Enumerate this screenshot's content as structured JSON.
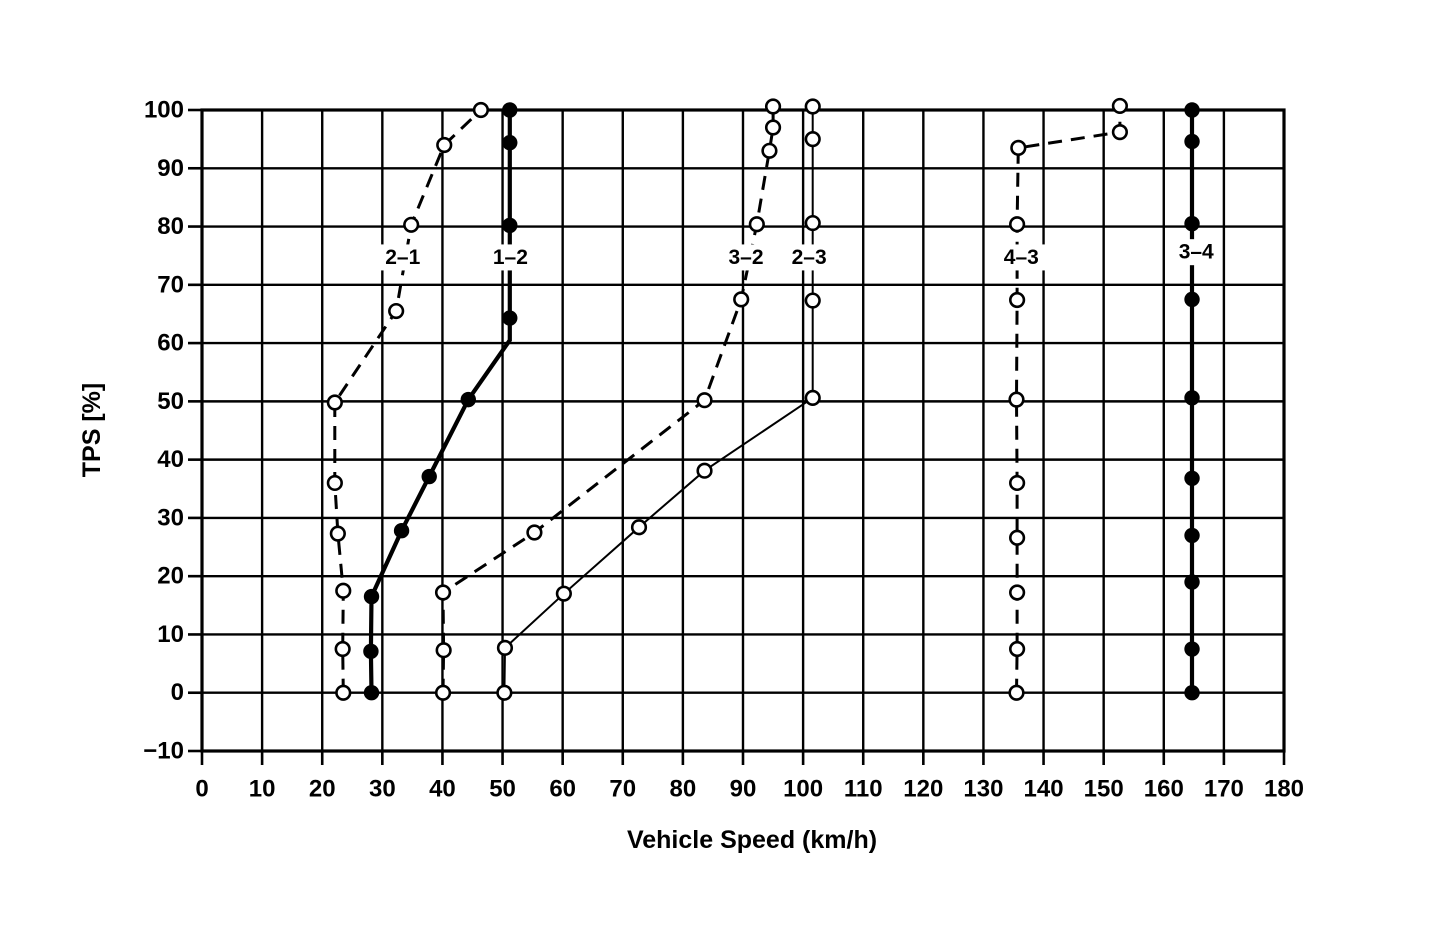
{
  "figure": {
    "background": "#ffffff",
    "ink": "#000000"
  },
  "chart_data": {
    "type": "line",
    "title": "",
    "xlabel": "Vehicle Speed (km/h)",
    "ylabel": "TPS [%]",
    "xlim": [
      0,
      180
    ],
    "ylim": [
      -10,
      100
    ],
    "x_ticks": [
      0,
      10,
      20,
      30,
      40,
      50,
      60,
      70,
      80,
      90,
      100,
      110,
      120,
      130,
      140,
      150,
      160,
      170,
      180
    ],
    "y_ticks": [
      -10,
      0,
      10,
      20,
      30,
      40,
      50,
      60,
      70,
      80,
      90,
      100
    ],
    "grid": true,
    "legend": "none",
    "series": [
      {
        "name": "2-1",
        "label": "2–1",
        "direction": "downshift",
        "line_style": "dashed",
        "marker": "open-circle",
        "label_xy": [
          33.4,
          74.7
        ],
        "points": [
          [
            23.5,
            0
          ],
          [
            23.4,
            7.5
          ],
          [
            23.5,
            17.5
          ],
          [
            22.6,
            27.3
          ],
          [
            22.1,
            36.0
          ],
          [
            22.1,
            49.8
          ],
          [
            32.3,
            65.5
          ],
          [
            34.8,
            80.3
          ],
          [
            40.3,
            94.0
          ],
          [
            46.4,
            100.0
          ]
        ]
      },
      {
        "name": "1-2",
        "label": "1–2",
        "direction": "upshift",
        "line_style": "solid-thick",
        "marker": "filled-circle",
        "label_xy": [
          51.3,
          74.7
        ],
        "points": [
          [
            28.2,
            0
          ],
          [
            28.1,
            7.1
          ],
          [
            28.2,
            16.5
          ],
          [
            33.2,
            27.8
          ],
          [
            37.8,
            37.1
          ],
          [
            44.3,
            50.3
          ],
          [
            51.2,
            64.3
          ],
          [
            51.2,
            80.2
          ],
          [
            51.2,
            94.4
          ],
          [
            51.2,
            100.0
          ]
        ],
        "line_vertices": [
          [
            28.2,
            0
          ],
          [
            28.1,
            7.1
          ],
          [
            28.2,
            16.5
          ],
          [
            33.2,
            27.8
          ],
          [
            37.8,
            37.1
          ],
          [
            44.3,
            50.3
          ],
          [
            51.2,
            60.5
          ],
          [
            51.2,
            64.3
          ],
          [
            51.2,
            80.2
          ],
          [
            51.2,
            94.4
          ],
          [
            51.2,
            100.0
          ]
        ]
      },
      {
        "name": "3-2",
        "label": "3–2",
        "direction": "downshift",
        "line_style": "dashed",
        "marker": "open-circle",
        "label_xy": [
          90.5,
          74.7
        ],
        "points": [
          [
            40.1,
            0
          ],
          [
            40.2,
            7.3
          ],
          [
            40.1,
            17.2
          ],
          [
            55.3,
            27.5
          ],
          [
            83.6,
            50.2
          ],
          [
            89.7,
            67.5
          ],
          [
            92.3,
            80.4
          ],
          [
            94.4,
            93.0
          ],
          [
            95.0,
            97.0
          ],
          [
            95.0,
            100.6
          ]
        ]
      },
      {
        "name": "2-3",
        "label": "2–3",
        "direction": "upshift",
        "line_style": "solid-thin",
        "marker": "open-circle",
        "label_xy": [
          101.0,
          74.7
        ],
        "points": [
          [
            50.3,
            0
          ],
          [
            50.4,
            7.7
          ],
          [
            60.2,
            17.0
          ],
          [
            72.7,
            28.4
          ],
          [
            83.6,
            38.1
          ],
          [
            101.6,
            50.6
          ],
          [
            101.6,
            67.3
          ],
          [
            101.6,
            80.6
          ],
          [
            101.6,
            95.0
          ],
          [
            101.6,
            100.6
          ]
        ]
      },
      {
        "name": "4-3",
        "label": "4–3",
        "direction": "downshift",
        "line_style": "dashed",
        "marker": "open-circle",
        "label_xy": [
          136.3,
          74.7
        ],
        "points": [
          [
            135.5,
            0
          ],
          [
            135.6,
            7.5
          ],
          [
            135.6,
            17.2
          ],
          [
            135.6,
            26.6
          ],
          [
            135.6,
            36.0
          ],
          [
            135.5,
            50.3
          ],
          [
            135.6,
            67.4
          ],
          [
            135.6,
            80.4
          ],
          [
            135.8,
            93.5
          ],
          [
            152.7,
            96.2
          ],
          [
            152.7,
            100.7
          ]
        ]
      },
      {
        "name": "3-4",
        "label": "3–4",
        "direction": "upshift",
        "line_style": "solid-thick",
        "marker": "filled-circle",
        "label_xy": [
          165.4,
          75.6
        ],
        "points": [
          [
            164.7,
            0
          ],
          [
            164.7,
            7.5
          ],
          [
            164.7,
            19.0
          ],
          [
            164.7,
            27.0
          ],
          [
            164.7,
            36.8
          ],
          [
            164.7,
            50.6
          ],
          [
            164.7,
            67.5
          ],
          [
            164.7,
            80.5
          ],
          [
            164.7,
            94.6
          ],
          [
            164.7,
            100.0
          ]
        ]
      }
    ]
  }
}
